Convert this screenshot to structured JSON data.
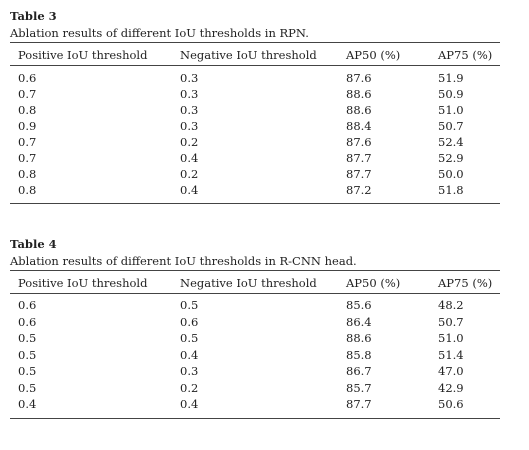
{
  "tables": [
    {
      "title": "Table 3",
      "caption": "Ablation results of different IoU thresholds in RPN.",
      "header": [
        "Positive IoU threshold",
        "Negative IoU threshold",
        "AP50 (%)",
        "AP75 (%)"
      ],
      "rows": [
        [
          "0.6",
          "0.3",
          "87.6",
          "51.9"
        ],
        [
          "0.7",
          "0.3",
          "88.6",
          "50.9"
        ],
        [
          "0.8",
          "0.3",
          "88.6",
          "51.0"
        ],
        [
          "0.9",
          "0.3",
          "88.4",
          "50.7"
        ],
        [
          "0.7",
          "0.2",
          "87.6",
          "52.4"
        ],
        [
          "0.7",
          "0.4",
          "87.7",
          "52.9"
        ],
        [
          "0.8",
          "0.2",
          "87.7",
          "50.0"
        ],
        [
          "0.8",
          "0.4",
          "87.2",
          "51.8"
        ]
      ]
    },
    {
      "title": "Table 4",
      "caption": "Ablation results of different IoU thresholds in R-CNN head.",
      "header": [
        "Positive IoU threshold",
        "Negative IoU threshold",
        "AP50 (%)",
        "AP75 (%)"
      ],
      "rows": [
        [
          "0.6",
          "0.5",
          "85.6",
          "48.2"
        ],
        [
          "0.6",
          "0.6",
          "86.4",
          "50.7"
        ],
        [
          "0.5",
          "0.5",
          "88.6",
          "51.0"
        ],
        [
          "0.5",
          "0.4",
          "85.8",
          "51.4"
        ],
        [
          "0.5",
          "0.3",
          "86.7",
          "47.0"
        ],
        [
          "0.5",
          "0.2",
          "85.7",
          "42.9"
        ],
        [
          "0.4",
          "0.4",
          "87.7",
          "50.6"
        ]
      ]
    }
  ]
}
